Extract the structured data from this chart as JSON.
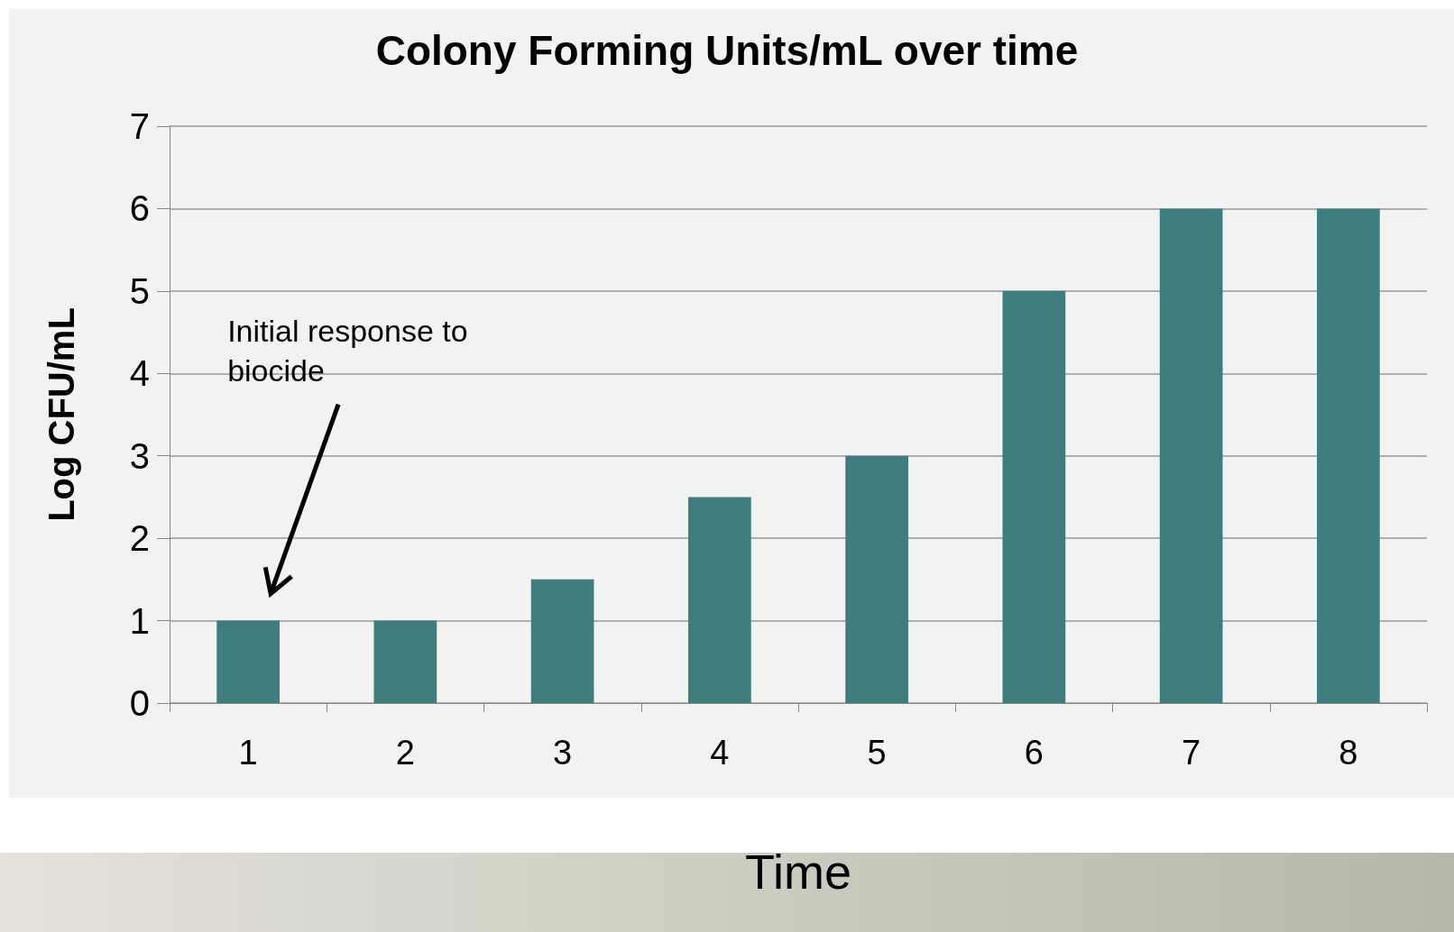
{
  "chart_data": {
    "type": "bar",
    "title": "Colony Forming Units/mL over time",
    "xlabel": "Time",
    "ylabel": "Log CFU/mL",
    "categories": [
      "1",
      "2",
      "3",
      "4",
      "5",
      "6",
      "7",
      "8"
    ],
    "values": [
      1,
      1,
      1.5,
      2.5,
      3,
      5,
      6,
      6
    ],
    "color": "#3d7d7d",
    "ylim": [
      0,
      7
    ],
    "yticks": [
      0,
      1,
      2,
      3,
      4,
      5,
      6,
      7
    ],
    "grid": "y",
    "annotations": [
      "Initial response to biocide"
    ]
  }
}
